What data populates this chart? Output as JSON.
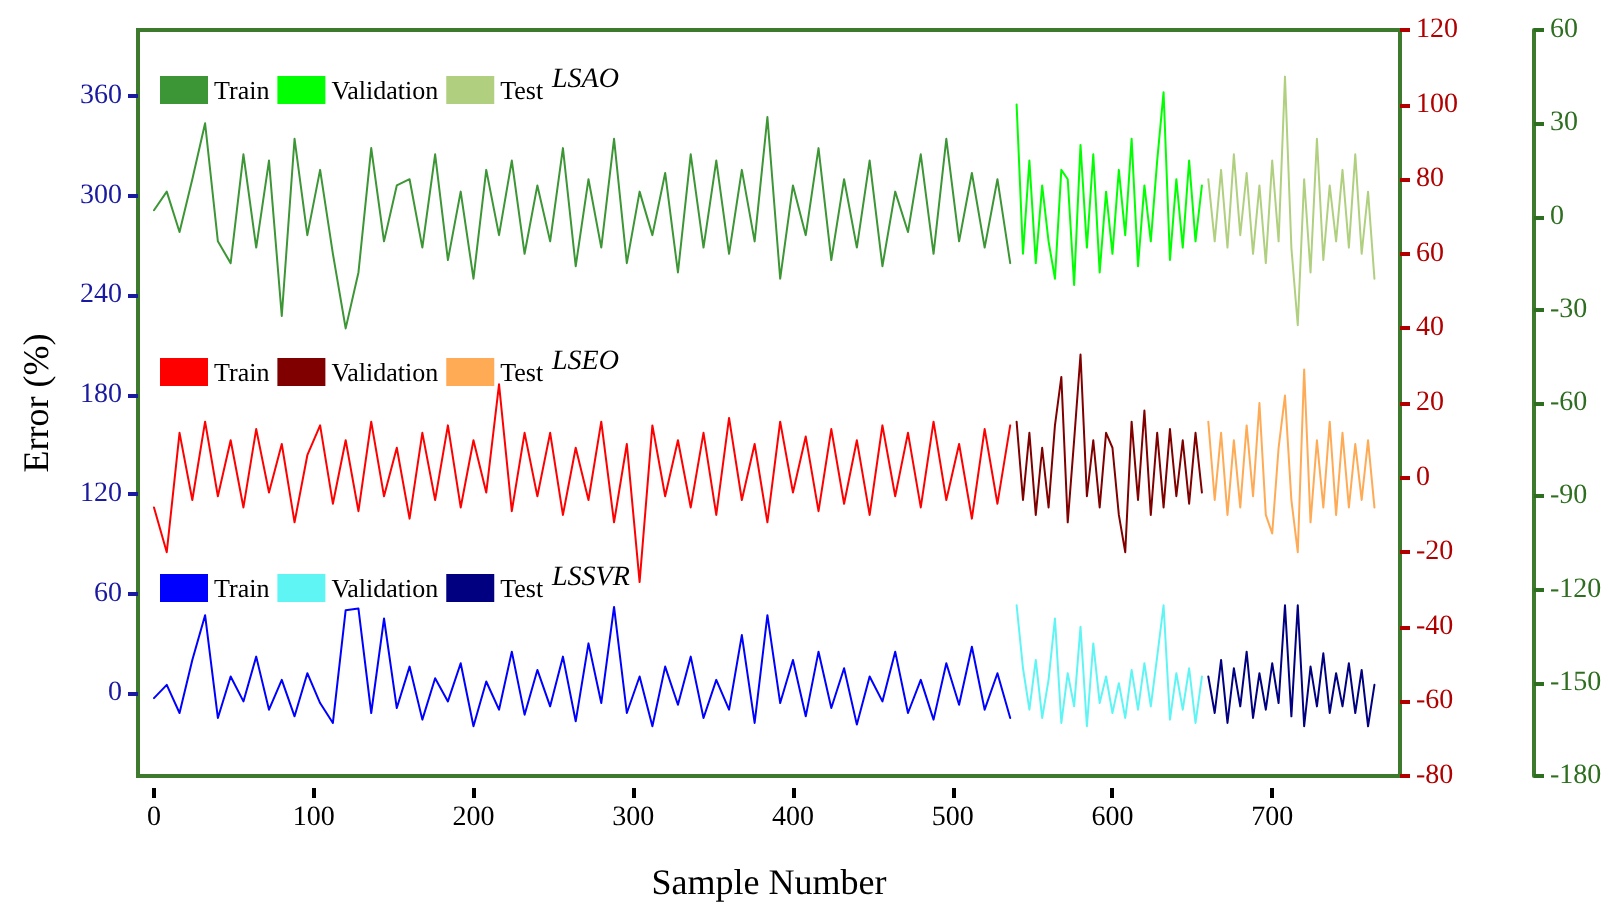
{
  "chart_data": {
    "type": "line",
    "xlabel": "Sample Number",
    "ylabel": "Error (%)",
    "annotations": [
      "LSAO",
      "LSEO",
      "LSSVR"
    ],
    "xlim": [
      -10,
      780
    ],
    "xticks": [
      0,
      100,
      200,
      300,
      400,
      500,
      600,
      700
    ],
    "ylim": [
      -50,
      400
    ],
    "yticks": [
      0,
      60,
      120,
      180,
      240,
      300,
      360
    ],
    "y2lim": [
      -80,
      120
    ],
    "y2ticks": [
      -80,
      -60,
      -40,
      -20,
      0,
      20,
      40,
      60,
      80,
      100,
      120
    ],
    "y3lim": [
      -180,
      60
    ],
    "y3ticks": [
      -180,
      -150,
      -120,
      -90,
      -60,
      -30,
      0,
      30,
      60
    ],
    "grid": false,
    "legend": "top left",
    "marker": "none",
    "line_style": "solid",
    "series": [
      {
        "name": "Train",
        "color": "#3d9636",
        "axis": "y3",
        "x": [
          0,
          8,
          16,
          24,
          32,
          40,
          48,
          56,
          64,
          72,
          80,
          88,
          96,
          104,
          112,
          120,
          128,
          136,
          144,
          152,
          160,
          168,
          176,
          184,
          192,
          200,
          208,
          216,
          224,
          232,
          240,
          248,
          256,
          264,
          272,
          280,
          288,
          296,
          304,
          312,
          320,
          328,
          336,
          344,
          352,
          360,
          368,
          376,
          384,
          392,
          400,
          408,
          416,
          424,
          432,
          440,
          448,
          456,
          464,
          472,
          480,
          488,
          496,
          504,
          512,
          520,
          528,
          536
        ],
        "values": [
          2,
          8,
          -5,
          12,
          30,
          -8,
          -15,
          20,
          -10,
          18,
          -32,
          25,
          -6,
          15,
          -12,
          -36,
          -18,
          22,
          -8,
          10,
          12,
          -10,
          20,
          -14,
          8,
          -20,
          15,
          -6,
          18,
          -12,
          10,
          -8,
          22,
          -16,
          12,
          -10,
          25,
          -15,
          8,
          -6,
          14,
          -18,
          20,
          -10,
          18,
          -12,
          15,
          -8,
          32,
          -20,
          10,
          -6,
          22,
          -14,
          12,
          -10,
          18,
          -16,
          8,
          -5,
          20,
          -12,
          25,
          -8,
          14,
          -10,
          12,
          -15
        ]
      },
      {
        "name": "Validation",
        "color": "#00ff00",
        "axis": "y3",
        "x": [
          540,
          544,
          548,
          552,
          556,
          560,
          564,
          568,
          572,
          576,
          580,
          584,
          588,
          592,
          596,
          600,
          604,
          608,
          612,
          616,
          620,
          624,
          628,
          632,
          636,
          640,
          644,
          648,
          652,
          656
        ],
        "values": [
          36,
          -12,
          18,
          -15,
          10,
          -8,
          -20,
          15,
          12,
          -22,
          23,
          -10,
          20,
          -18,
          8,
          -12,
          15,
          -6,
          25,
          -16,
          10,
          -8,
          18,
          40,
          -14,
          12,
          -10,
          18,
          -8,
          10
        ]
      },
      {
        "name": "Test",
        "color": "#b0d080",
        "axis": "y3",
        "x": [
          660,
          664,
          668,
          672,
          676,
          680,
          684,
          688,
          692,
          696,
          700,
          704,
          708,
          712,
          716,
          720,
          724,
          728,
          732,
          736,
          740,
          744,
          748,
          752,
          756,
          760,
          764
        ],
        "values": [
          12,
          -8,
          15,
          -10,
          20,
          -6,
          14,
          -12,
          10,
          -15,
          18,
          -8,
          45,
          -10,
          -35,
          12,
          -18,
          25,
          -14,
          10,
          -8,
          15,
          -10,
          20,
          -12,
          8,
          -20
        ]
      },
      {
        "name": "Train",
        "color": "#ff0000",
        "axis": "y2",
        "x": [
          0,
          8,
          16,
          24,
          32,
          40,
          48,
          56,
          64,
          72,
          80,
          88,
          96,
          104,
          112,
          120,
          128,
          136,
          144,
          152,
          160,
          168,
          176,
          184,
          192,
          200,
          208,
          216,
          224,
          232,
          240,
          248,
          256,
          264,
          272,
          280,
          288,
          296,
          304,
          312,
          320,
          328,
          336,
          344,
          352,
          360,
          368,
          376,
          384,
          392,
          400,
          408,
          416,
          424,
          432,
          440,
          448,
          456,
          464,
          472,
          480,
          488,
          496,
          504,
          512,
          520,
          528,
          536
        ],
        "values": [
          -8,
          -20,
          12,
          -6,
          15,
          -5,
          10,
          -8,
          13,
          -4,
          9,
          -12,
          6,
          14,
          -7,
          10,
          -9,
          15,
          -5,
          8,
          -11,
          12,
          -6,
          14,
          -8,
          10,
          -4,
          25,
          -9,
          12,
          -5,
          12,
          -10,
          8,
          -6,
          15,
          -12,
          9,
          -28,
          14,
          -5,
          10,
          -8,
          12,
          -10,
          16,
          -6,
          9,
          -12,
          15,
          -4,
          11,
          -9,
          13,
          -7,
          10,
          -10,
          14,
          -5,
          12,
          -8,
          15,
          -6,
          9,
          -11,
          13,
          -7,
          14
        ]
      },
      {
        "name": "Validation",
        "color": "#800000",
        "axis": "y2",
        "x": [
          540,
          544,
          548,
          552,
          556,
          560,
          564,
          568,
          572,
          576,
          580,
          584,
          588,
          592,
          596,
          600,
          604,
          608,
          612,
          616,
          620,
          624,
          628,
          632,
          636,
          640,
          644,
          648,
          652,
          656
        ],
        "values": [
          15,
          -6,
          12,
          -10,
          8,
          -8,
          14,
          27,
          -12,
          10,
          33,
          -5,
          10,
          -8,
          12,
          8,
          -10,
          -20,
          15,
          -6,
          18,
          -10,
          12,
          -8,
          13,
          -5,
          10,
          -7,
          12,
          -4
        ]
      },
      {
        "name": "Test",
        "color": "#ffaa55",
        "axis": "y2",
        "x": [
          660,
          664,
          668,
          672,
          676,
          680,
          684,
          688,
          692,
          696,
          700,
          704,
          708,
          712,
          716,
          720,
          724,
          728,
          732,
          736,
          740,
          744,
          748,
          752,
          756,
          760,
          764
        ],
        "values": [
          15,
          -6,
          12,
          -10,
          10,
          -8,
          14,
          -5,
          20,
          -10,
          -15,
          8,
          22,
          -6,
          -20,
          29,
          -12,
          10,
          -8,
          15,
          -10,
          12,
          -8,
          9,
          -6,
          10,
          -8
        ]
      },
      {
        "name": "Train",
        "color": "#0000ff",
        "x": [
          0,
          8,
          16,
          24,
          32,
          40,
          48,
          56,
          64,
          72,
          80,
          88,
          96,
          104,
          112,
          120,
          128,
          136,
          144,
          152,
          160,
          168,
          176,
          184,
          192,
          200,
          208,
          216,
          224,
          232,
          240,
          248,
          256,
          264,
          272,
          280,
          288,
          296,
          304,
          312,
          320,
          328,
          336,
          344,
          352,
          360,
          368,
          376,
          384,
          392,
          400,
          408,
          416,
          424,
          432,
          440,
          448,
          456,
          464,
          472,
          480,
          488,
          496,
          504,
          512,
          520,
          528,
          536
        ],
        "values": [
          -3,
          5,
          -12,
          20,
          47,
          -15,
          10,
          -5,
          22,
          -10,
          8,
          -14,
          12,
          -6,
          -18,
          50,
          51,
          -12,
          45,
          -9,
          16,
          -16,
          9,
          -5,
          18,
          -20,
          7,
          -10,
          25,
          -13,
          14,
          -8,
          22,
          -17,
          30,
          -6,
          52,
          -12,
          10,
          -20,
          16,
          -7,
          22,
          -15,
          8,
          -10,
          35,
          -18,
          47,
          -6,
          20,
          -14,
          25,
          -9,
          15,
          -19,
          10,
          -5,
          25,
          -12,
          8,
          -16,
          18,
          -7,
          28,
          -10,
          12,
          -15
        ]
      },
      {
        "name": "Validation",
        "color": "#5ff5f5",
        "x": [
          540,
          544,
          548,
          552,
          556,
          560,
          564,
          568,
          572,
          576,
          580,
          584,
          588,
          592,
          596,
          600,
          604,
          608,
          612,
          616,
          620,
          624,
          628,
          632,
          636,
          640,
          644,
          648,
          652,
          656
        ],
        "values": [
          53,
          15,
          -10,
          20,
          -15,
          8,
          45,
          -18,
          12,
          -8,
          40,
          -20,
          30,
          -6,
          10,
          -12,
          6,
          -15,
          14,
          -10,
          18,
          -8,
          22,
          53,
          -16,
          12,
          -10,
          15,
          -18,
          10
        ]
      },
      {
        "name": "Test",
        "color": "#000080",
        "x": [
          660,
          664,
          668,
          672,
          676,
          680,
          684,
          688,
          692,
          696,
          700,
          704,
          708,
          712,
          716,
          720,
          724,
          728,
          732,
          736,
          740,
          744,
          748,
          752,
          756,
          760,
          764
        ],
        "values": [
          10,
          -12,
          20,
          -18,
          15,
          -8,
          25,
          -15,
          12,
          -10,
          18,
          -6,
          53,
          -14,
          53,
          -20,
          16,
          -8,
          24,
          -12,
          12,
          -8,
          18,
          -12,
          14,
          -20,
          5
        ]
      }
    ]
  }
}
